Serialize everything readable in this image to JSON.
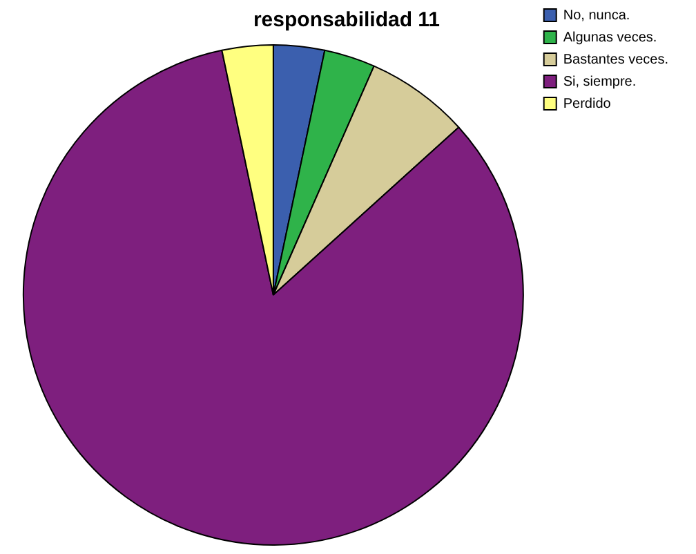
{
  "chart_data": {
    "type": "pie",
    "title": "responsabilidad 11",
    "categories": [
      "No, nunca.",
      "Algunas veces.",
      "Bastantes veces.",
      "Si, siempre.",
      "Perdido"
    ],
    "values": [
      3.3,
      3.3,
      6.7,
      83.4,
      3.3
    ],
    "colors": [
      "#3b5fae",
      "#2fb34a",
      "#d6cc9a",
      "#7e1f7e",
      "#ffff80"
    ],
    "legend": "top right"
  }
}
